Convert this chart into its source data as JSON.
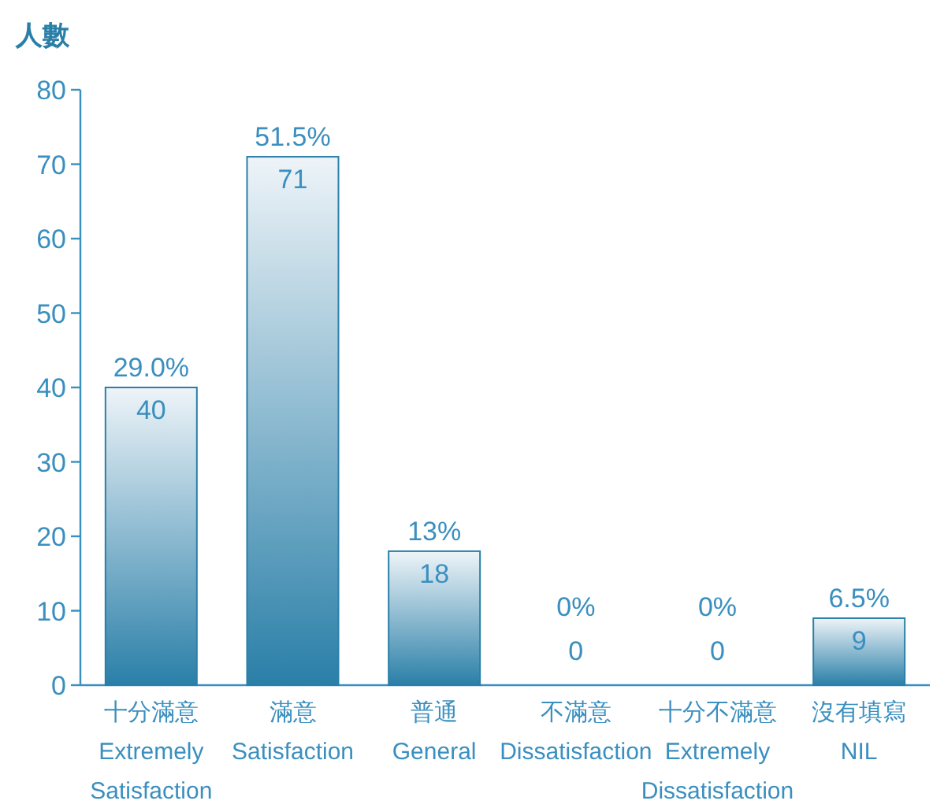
{
  "chart_data": {
    "type": "bar",
    "ylabel": "人數",
    "categories": [
      "十分滿意\nExtremely\nSatisfaction",
      "滿意\nSatisfaction",
      "普通\nGeneral",
      "不滿意\nDissatisfaction",
      "十分不滿意\nExtremely\nDissatisfaction",
      "沒有填寫\nNIL"
    ],
    "values": [
      40,
      71,
      18,
      0,
      0,
      9
    ],
    "value_labels": [
      "40",
      "71",
      "18",
      "0",
      "0",
      "9"
    ],
    "annotations": [
      {
        "text": "29.0%",
        "x": "十分滿意\nExtremely\nSatisfaction",
        "y": 40
      },
      {
        "text": "51.5%",
        "x": "滿意\nSatisfaction",
        "y": 71
      },
      {
        "text": "13%",
        "x": "普通\nGeneral",
        "y": 18
      },
      {
        "text": "0%",
        "x": "不滿意\nDissatisfaction",
        "y": 0
      },
      {
        "text": "0%",
        "x": "十分不滿意\nExtremely\nDissatisfaction",
        "y": 0
      },
      {
        "text": "6.5%",
        "x": "沒有填寫\nNIL",
        "y": 9
      }
    ],
    "color": "#2a7fa8",
    "ylim": [
      0,
      80
    ],
    "yticks": [
      0,
      10,
      20,
      30,
      40,
      50,
      60,
      70,
      80
    ]
  }
}
